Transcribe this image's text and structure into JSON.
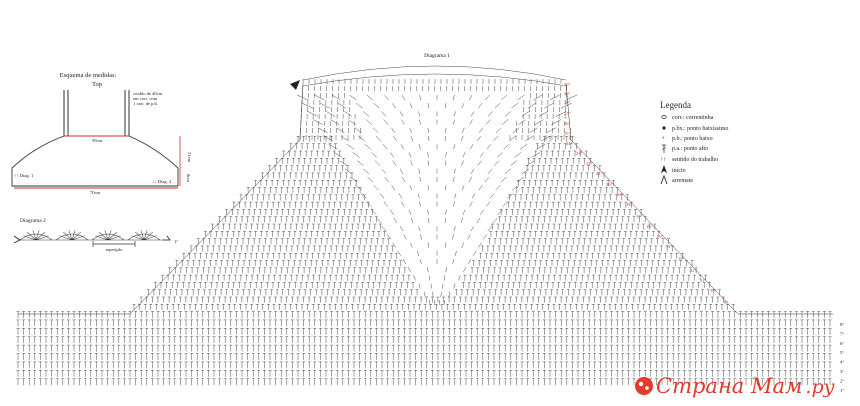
{
  "schema": {
    "title": "Esquema de medidas:",
    "subtitle": "Top",
    "cord_note": [
      "cordão de 40cm",
      "em corr. com",
      "1 carr. de p.b."
    ],
    "measure_top": "39cm",
    "measure_height": "21cm",
    "measure_side": "8cm",
    "measure_bottom": "70cm",
    "diag_left": "Diag. 1",
    "diag_right": "Diag. 2"
  },
  "diagram2": {
    "title": "Diagrama 2",
    "repeat_label": "repetição",
    "end_label": "1°"
  },
  "diagram1": {
    "title": "Diagrama 1",
    "row_labels_red": [
      "30°",
      "29°",
      "28°",
      "27°",
      "26°",
      "25°",
      "24°",
      "23°",
      "22°",
      "21°",
      "20°",
      "19°",
      "18°",
      "17°",
      "16°",
      "15°",
      "14°",
      "13°",
      "12°",
      "11°",
      "10°",
      "9°"
    ],
    "row_labels_black": [
      "8°",
      "7°",
      "6°",
      "5°",
      "4°",
      "3°",
      "2°",
      "1°"
    ]
  },
  "legend": {
    "title": "Legenda",
    "items": [
      {
        "symbol": "chain",
        "label": "corr.: correntinha"
      },
      {
        "symbol": "slip",
        "label": "p.bx.: ponto baixíssimo"
      },
      {
        "symbol": "sc",
        "label": "p.b.: ponto baixo"
      },
      {
        "symbol": "dc",
        "label": "p.a.: ponto alto"
      },
      {
        "symbol": "direction",
        "label": "sentido do trabalho"
      },
      {
        "symbol": "start",
        "label": "início"
      },
      {
        "symbol": "finish",
        "label": "arremate"
      }
    ]
  },
  "watermark": {
    "text": "Страна Мам",
    "suffix": ".ру"
  }
}
